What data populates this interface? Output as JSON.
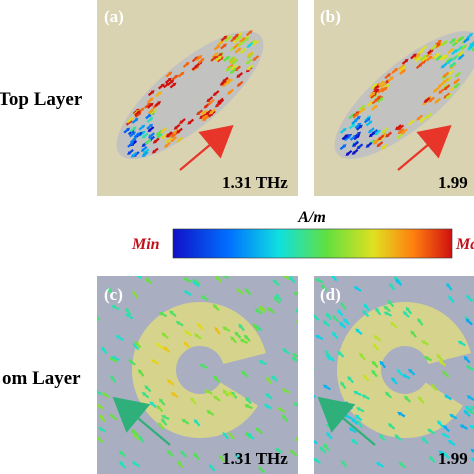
{
  "panels": [
    {
      "label": "(a)",
      "frequency": "1.31 THz"
    },
    {
      "label": "(b)",
      "frequency": "1.99"
    },
    {
      "label": "(c)",
      "frequency": "1.31 THz"
    },
    {
      "label": "(d)",
      "frequency": "1.99"
    }
  ],
  "rows": [
    "Top Layer",
    "om Layer"
  ],
  "colorbar": {
    "unit": "A/m",
    "min": "Min",
    "max": "Ma"
  }
}
